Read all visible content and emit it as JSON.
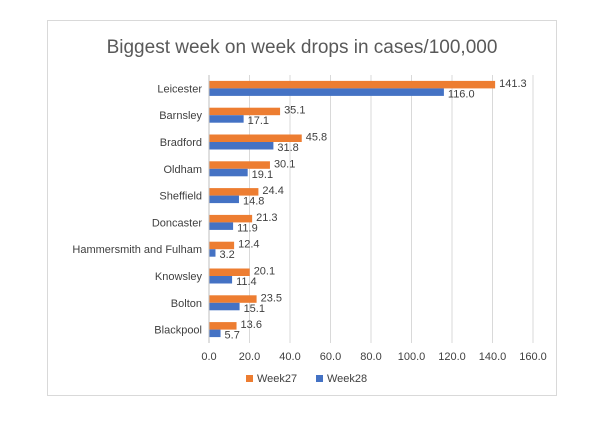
{
  "chart_data": {
    "type": "bar",
    "orientation": "horizontal",
    "title": "Biggest week on week drops in cases/100,000",
    "categories": [
      "Leicester",
      "Barnsley",
      "Bradford",
      "Oldham",
      "Sheffield",
      "Doncaster",
      "Hammersmith and Fulham",
      "Knowsley",
      "Bolton",
      "Blackpool"
    ],
    "series": [
      {
        "name": "Week27",
        "color": "#ed7d31",
        "values": [
          141.3,
          35.1,
          45.8,
          30.1,
          24.4,
          21.3,
          12.4,
          20.1,
          23.5,
          13.6
        ],
        "labels": [
          "141.3",
          "35.1",
          "45.8",
          "30.1",
          "24.4",
          "21.3",
          "12.4",
          "20.1",
          "23.5",
          "13.6"
        ]
      },
      {
        "name": "Week28",
        "color": "#4472c4",
        "values": [
          116.0,
          17.1,
          31.8,
          19.1,
          14.8,
          11.9,
          3.2,
          11.4,
          15.1,
          5.7
        ],
        "labels": [
          "116.0",
          "17.1",
          "31.8",
          "19.1",
          "14.8",
          "11.9",
          "3.2",
          "11.4",
          "15.1",
          "5.7"
        ]
      }
    ],
    "xlim": [
      0,
      160
    ],
    "xticks": [
      "0.0",
      "20.0",
      "40.0",
      "60.0",
      "80.0",
      "100.0",
      "120.0",
      "140.0",
      "160.0"
    ],
    "grid": true,
    "legend": "bottom"
  }
}
